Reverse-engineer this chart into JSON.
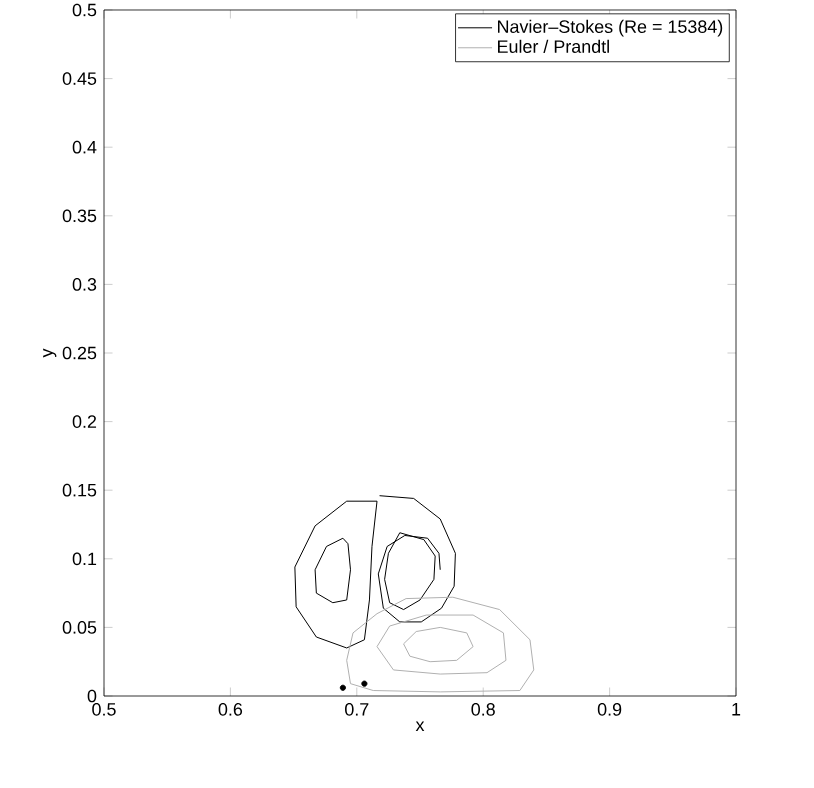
{
  "chart_data": {
    "type": "line",
    "xlabel": "x",
    "ylabel": "y",
    "xlim": [
      0.5,
      1
    ],
    "ylim": [
      0,
      0.5
    ],
    "xticks": [
      0.5,
      0.6,
      0.7,
      0.8,
      0.9,
      1
    ],
    "yticks": [
      0,
      0.05,
      0.1,
      0.15,
      0.2,
      0.25,
      0.3,
      0.35,
      0.4,
      0.45,
      0.5
    ],
    "legend": "top right",
    "grid": false,
    "marker": "none",
    "line_style": "solid",
    "series": [
      {
        "name": "Navier–Stokes (Re = 15384)",
        "color": "#000000",
        "x": [
          0.651,
          0.667,
          0.692,
          0.716
        ],
        "values": [
          0.094,
          0.124,
          0.142,
          0.142
        ]
      },
      {
        "color": "#000000",
        "x": [
          0.651,
          0.652,
          0.668,
          0.692,
          0.706,
          0.71,
          0.712,
          0.716
        ],
        "values": [
          0.094,
          0.065,
          0.043,
          0.035,
          0.041,
          0.07,
          0.109,
          0.142
        ]
      },
      {
        "color": "#000000",
        "x": [
          0.718,
          0.745,
          0.766,
          0.778
        ],
        "values": [
          0.146,
          0.144,
          0.129,
          0.104
        ]
      },
      {
        "color": "#000000",
        "x": [
          0.717,
          0.721,
          0.734,
          0.751,
          0.767,
          0.777,
          0.778
        ],
        "values": [
          0.089,
          0.064,
          0.054,
          0.054,
          0.064,
          0.08,
          0.104
        ]
      },
      {
        "color": "#000000",
        "x": [
          0.717,
          0.724,
          0.738,
          0.756,
          0.765,
          0.766
        ],
        "values": [
          0.089,
          0.109,
          0.117,
          0.115,
          0.104,
          0.092
        ]
      },
      {
        "color": "#000000",
        "x": [
          0.667,
          0.676,
          0.689,
          0.693,
          0.695,
          null,
          0.667,
          0.668,
          0.681,
          0.692,
          0.695
        ],
        "values": [
          0.092,
          0.109,
          0.115,
          0.111,
          0.092,
          null,
          0.092,
          0.075,
          0.068,
          0.07,
          0.092
        ]
      },
      {
        "color": "#000000",
        "x": [
          0.722,
          0.725,
          0.734,
          0.753,
          0.762,
          null,
          0.722,
          0.726,
          0.737,
          0.75,
          0.761,
          0.762
        ],
        "values": [
          0.085,
          0.104,
          0.119,
          0.114,
          0.102,
          null,
          0.085,
          0.068,
          0.063,
          0.07,
          0.085,
          0.102
        ]
      },
      {
        "type": "scatter",
        "color": "#000000",
        "x": [
          0.689,
          0.706
        ],
        "values": [
          0.006,
          0.009
        ]
      },
      {
        "name": "Euler / Prandtl",
        "color": "#b0b0b0",
        "x": [
          0.692,
          0.697,
          0.716,
          0.739,
          0.776,
          0.813,
          0.837,
          0.84,
          null,
          0.692,
          0.695,
          0.713,
          0.766,
          0.829,
          0.84
        ],
        "values": [
          0.026,
          0.046,
          0.06,
          0.071,
          0.072,
          0.063,
          0.041,
          0.019,
          null,
          0.026,
          0.009,
          0.004,
          0.003,
          0.004,
          0.019
        ]
      },
      {
        "color": "#b0b0b0",
        "x": [
          0.716,
          0.726,
          0.755,
          0.792,
          0.816,
          0.818,
          null,
          0.716,
          0.729,
          0.766,
          0.803,
          0.818
        ],
        "values": [
          0.036,
          0.051,
          0.059,
          0.059,
          0.046,
          0.026,
          null,
          0.036,
          0.019,
          0.016,
          0.017,
          0.026
        ]
      },
      {
        "color": "#b0b0b0",
        "x": [
          0.737,
          0.747,
          0.766,
          0.787,
          0.792,
          null,
          0.737,
          0.742,
          0.758,
          0.779,
          0.792
        ],
        "values": [
          0.038,
          0.047,
          0.05,
          0.046,
          0.036,
          null,
          0.038,
          0.029,
          0.025,
          0.026,
          0.036
        ]
      }
    ]
  }
}
